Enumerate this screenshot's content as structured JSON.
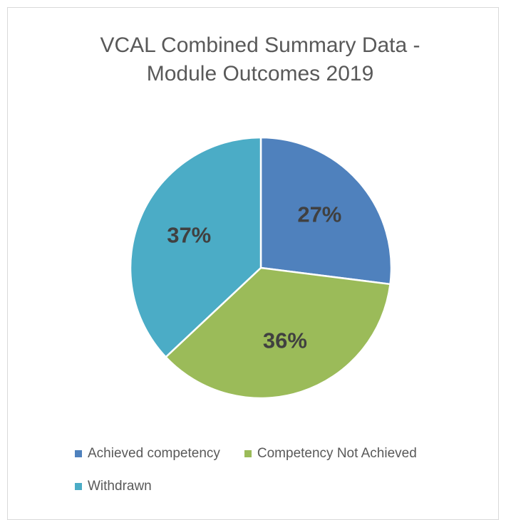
{
  "chart_data": {
    "type": "pie",
    "title": "VCAL Combined Summary Data - Module Outcomes 2019",
    "categories": [
      "Achieved competency",
      "Competency Not Achieved",
      "Withdrawn"
    ],
    "values": [
      27,
      36,
      37
    ],
    "value_labels": [
      "27%",
      "36%",
      "37%"
    ],
    "colors": [
      "#4f81bd",
      "#9bbb59",
      "#4bacc6"
    ],
    "legend": "bottom"
  }
}
